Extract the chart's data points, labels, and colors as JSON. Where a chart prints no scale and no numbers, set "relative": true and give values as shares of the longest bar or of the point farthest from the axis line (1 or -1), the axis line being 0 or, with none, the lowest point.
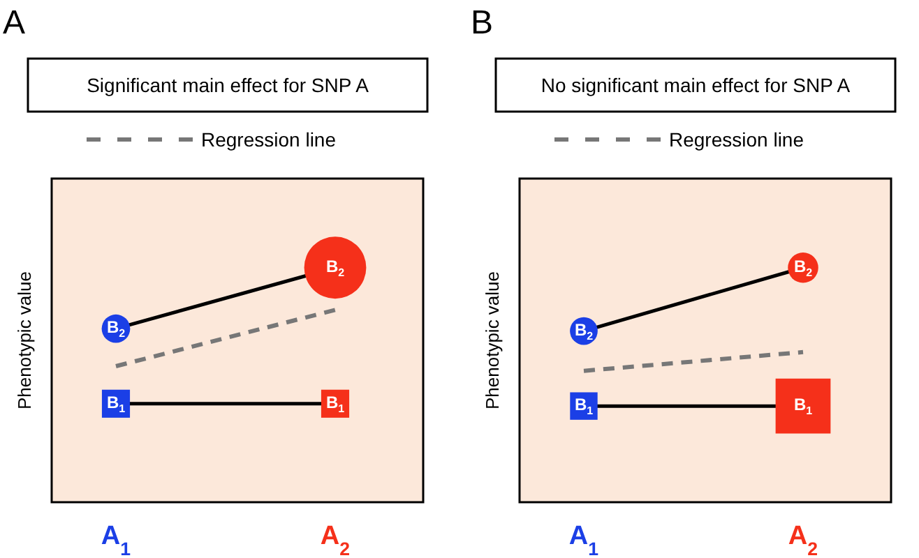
{
  "chart_data": [
    {
      "type": "line",
      "title": "A",
      "subtitle": "Significant main effect for SNP A",
      "ylabel": "Phenotypic value",
      "relative": true,
      "categories": [
        "A$_{1}$",
        "A$_{2}$"
      ],
      "legend": "top",
      "tick_labels": "x",
      "series": [
        {
          "type": "line",
          "name": "Regression line",
          "color": "#777777",
          "line_style": "dashed",
          "values": [
            0.58,
            0.82
          ]
        },
        {
          "type": "bubble",
          "name": "B$_{2}$",
          "color": "#000000",
          "marker": "circle",
          "colors": [
            "#1b3fe6",
            "#f5301a"
          ],
          "values": [
            0.74,
            1
          ],
          "sizes": [
            0.21,
            1
          ]
        },
        {
          "type": "bubble",
          "name": "B$_{1}$",
          "color": "#000000",
          "marker": "square",
          "colors": [
            "#1b3fe6",
            "#f5301a"
          ],
          "values": [
            0.42,
            0.42
          ],
          "sizes": [
            0.26,
            0.26
          ]
        }
      ]
    },
    {
      "type": "line",
      "title": "B",
      "subtitle": "No significant main effect for SNP A",
      "ylabel": "Phenotypic value",
      "relative": true,
      "categories": [
        "A$_{1}$",
        "A$_{2}$"
      ],
      "legend": "top",
      "tick_labels": "x",
      "series": [
        {
          "type": "line",
          "name": "Regression line",
          "color": "#777777",
          "line_style": "dashed",
          "values": [
            0.56,
            0.64
          ]
        },
        {
          "type": "bubble",
          "name": "B$_{2}$",
          "color": "#000000",
          "marker": "circle",
          "colors": [
            "#1b3fe6",
            "#f5301a"
          ],
          "values": [
            0.73,
            1
          ],
          "sizes": [
            0.2,
            0.24
          ]
        },
        {
          "type": "bubble",
          "name": "B$_{1}$",
          "color": "#000000",
          "marker": "square",
          "colors": [
            "#1b3fe6",
            "#f5301a"
          ],
          "values": [
            0.41,
            0.41
          ],
          "sizes": [
            0.25,
            1
          ]
        }
      ]
    }
  ]
}
